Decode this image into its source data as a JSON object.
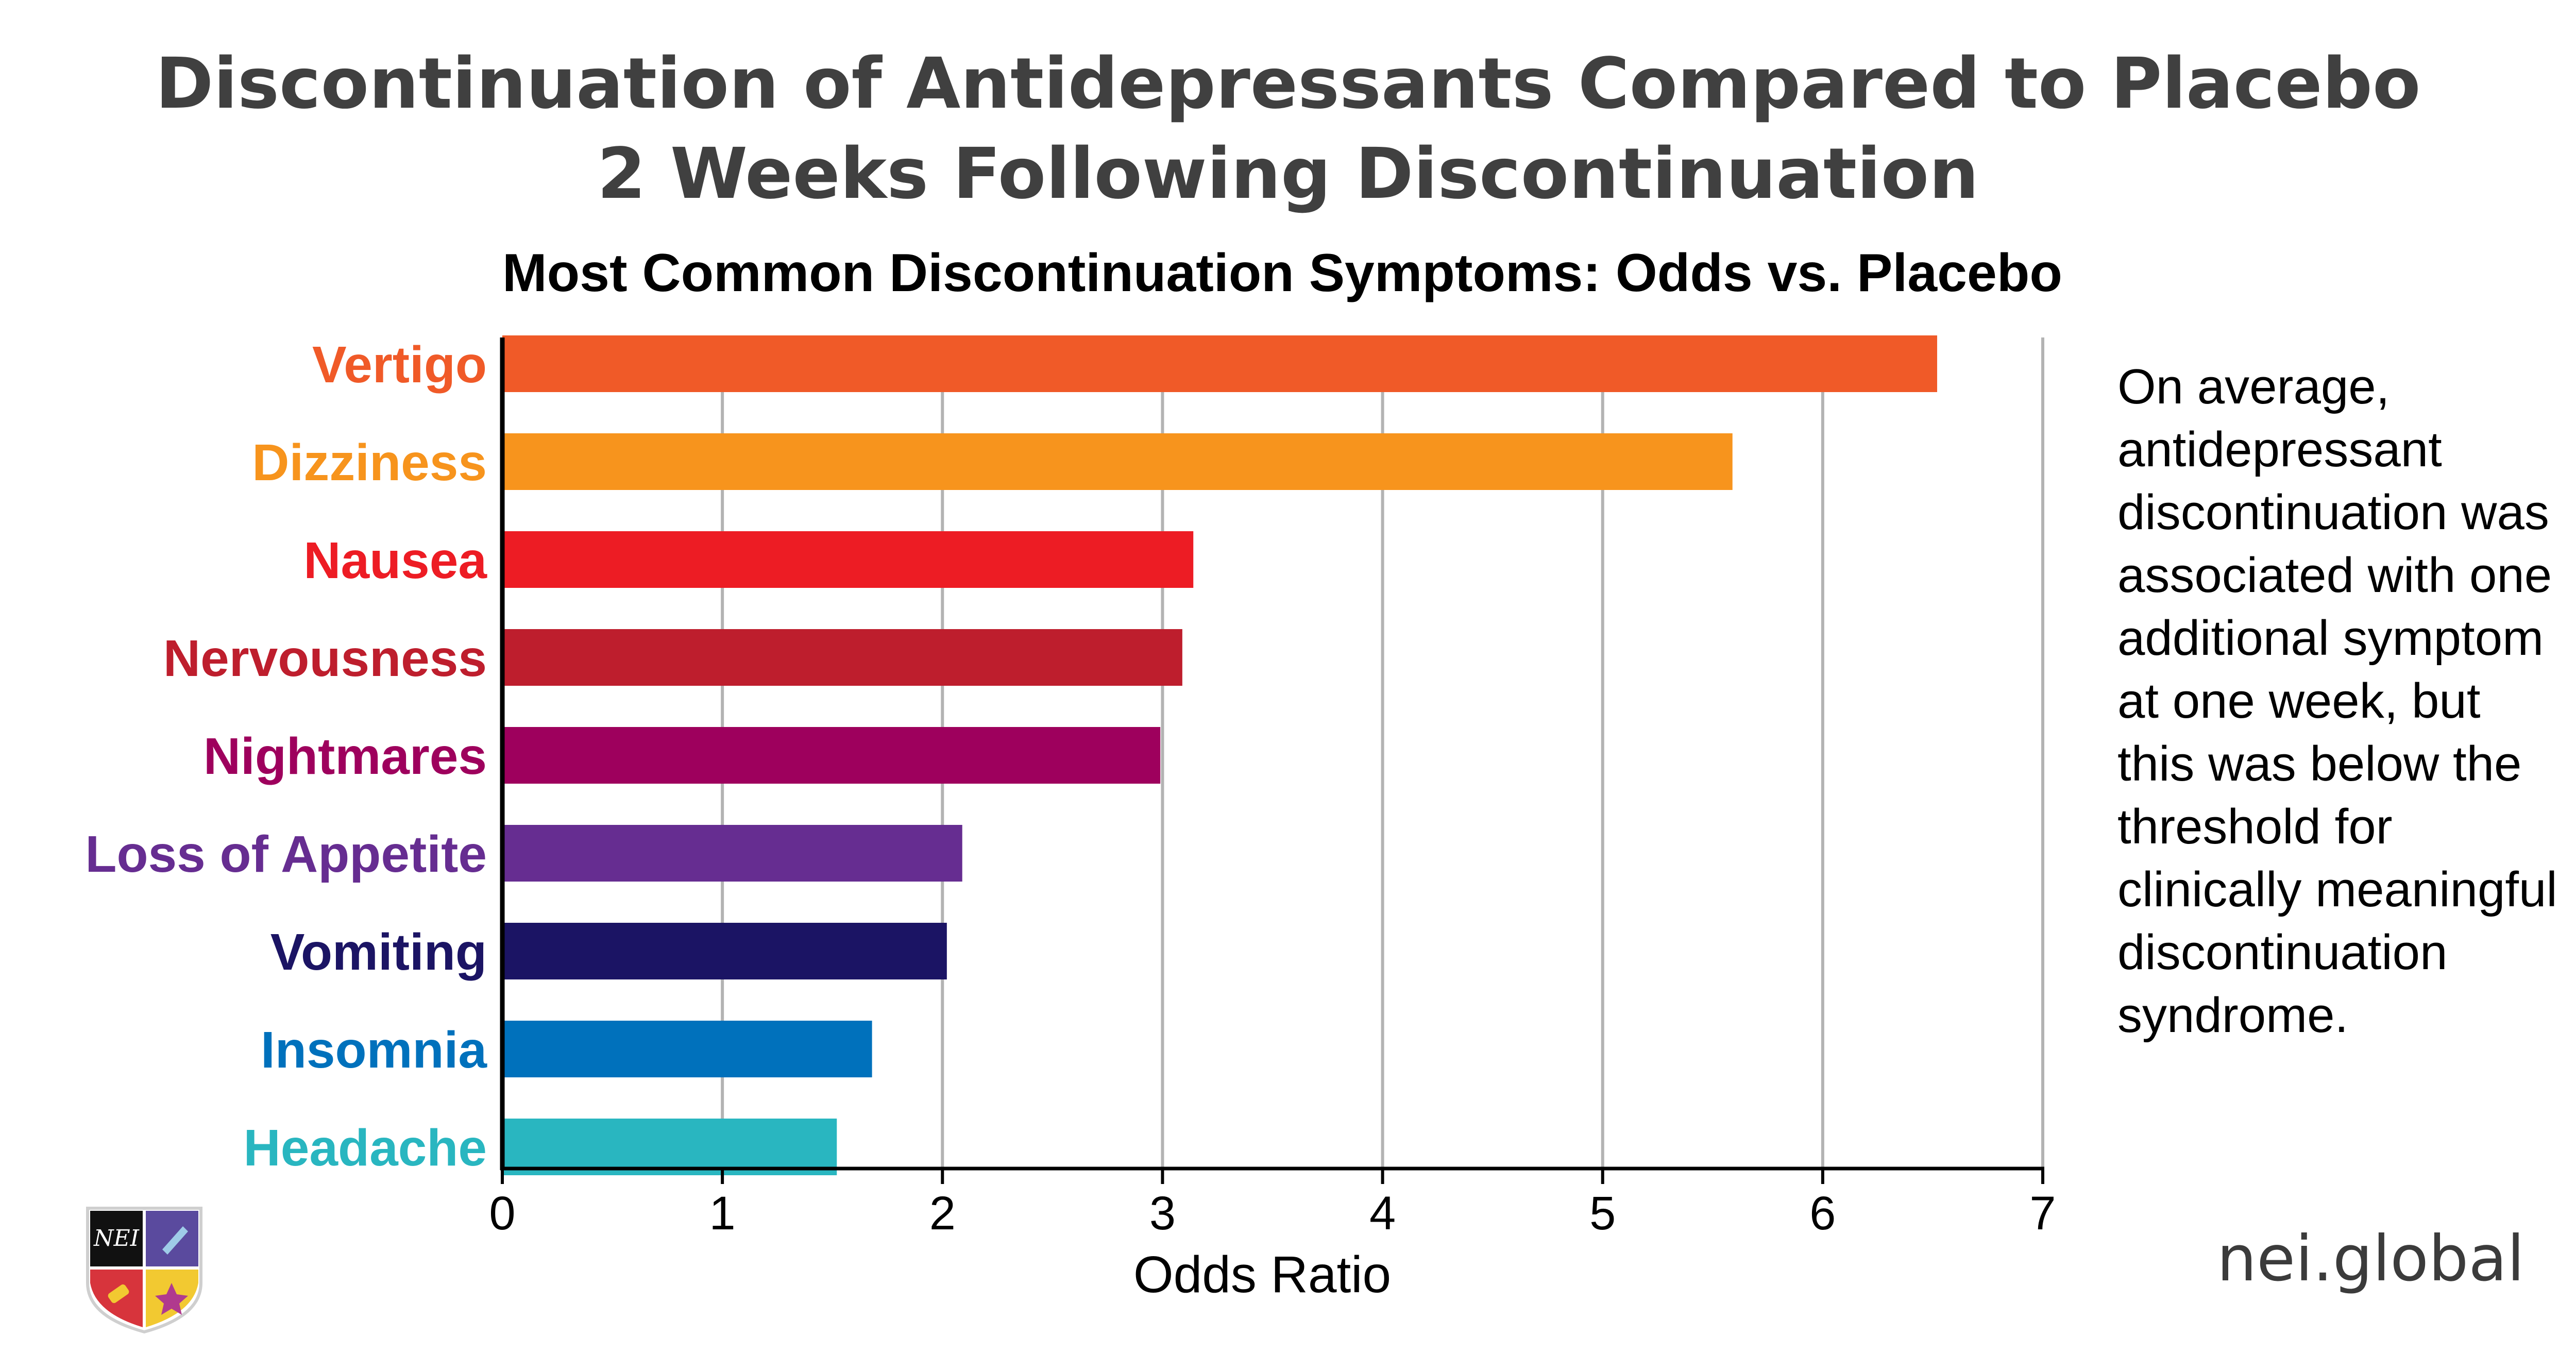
{
  "title_line1": "Discontinuation of Antidepressants Compared to Placebo",
  "title_line2": "2 Weeks Following Discontinuation",
  "note": "On average, antidepressant discontinuation was associated with one additional symptom at one week, but this was below the threshold for clinically meaningful discontinuation syndrome.",
  "brand": "nei.global",
  "logo_text": "NEI",
  "chart_data": {
    "type": "bar",
    "orientation": "horizontal",
    "title": "Most Common Discontinuation Symptoms: Odds vs. Placebo",
    "xlabel": "Odds Ratio",
    "ylabel": "",
    "xlim": [
      0,
      7
    ],
    "xticks": [
      "0",
      "1",
      "2",
      "3",
      "4",
      "5",
      "6",
      "7"
    ],
    "grid": true,
    "categories": [
      "Vertigo",
      "Dizziness",
      "Nausea",
      "Nervousness",
      "Nightmares",
      "Loss of Appetite",
      "Vomiting",
      "Insomnia",
      "Headache"
    ],
    "values": [
      6.52,
      5.59,
      3.14,
      3.09,
      2.99,
      2.09,
      2.02,
      1.68,
      1.52
    ],
    "colors": [
      "#f05a28",
      "#f7941d",
      "#ed1c24",
      "#be1e2d",
      "#9e005d",
      "#662d91",
      "#1b1464",
      "#0071bc",
      "#29b6c0"
    ]
  }
}
